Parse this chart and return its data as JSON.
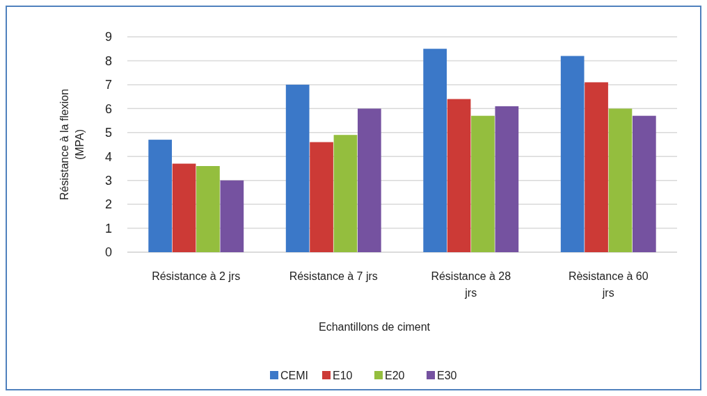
{
  "chart_data": {
    "type": "bar",
    "xlabel": "Echantillons de ciment",
    "ylabel": "Résistance à la flexion (MPA)",
    "categories": [
      "Résistance à 2 jrs",
      "Résistance à 7 jrs",
      "Résistance à 28 jrs",
      "Rèsistance à 60 jrs"
    ],
    "series": [
      {
        "name": "CEMI",
        "color": "#3b78c8",
        "values": [
          4.7,
          7.0,
          8.5,
          8.2
        ]
      },
      {
        "name": "E10",
        "color": "#cc3a36",
        "values": [
          3.7,
          4.6,
          6.4,
          7.1
        ]
      },
      {
        "name": "E20",
        "color": "#94be3e",
        "values": [
          3.6,
          4.9,
          5.7,
          6.0
        ]
      },
      {
        "name": "E30",
        "color": "#7552a0",
        "values": [
          3.0,
          6.0,
          6.1,
          5.7
        ]
      }
    ],
    "ylim": [
      0,
      9
    ],
    "yticks": [
      0,
      1,
      2,
      3,
      4,
      5,
      6,
      7,
      8,
      9
    ],
    "grid": "y",
    "legend": "bottom"
  }
}
